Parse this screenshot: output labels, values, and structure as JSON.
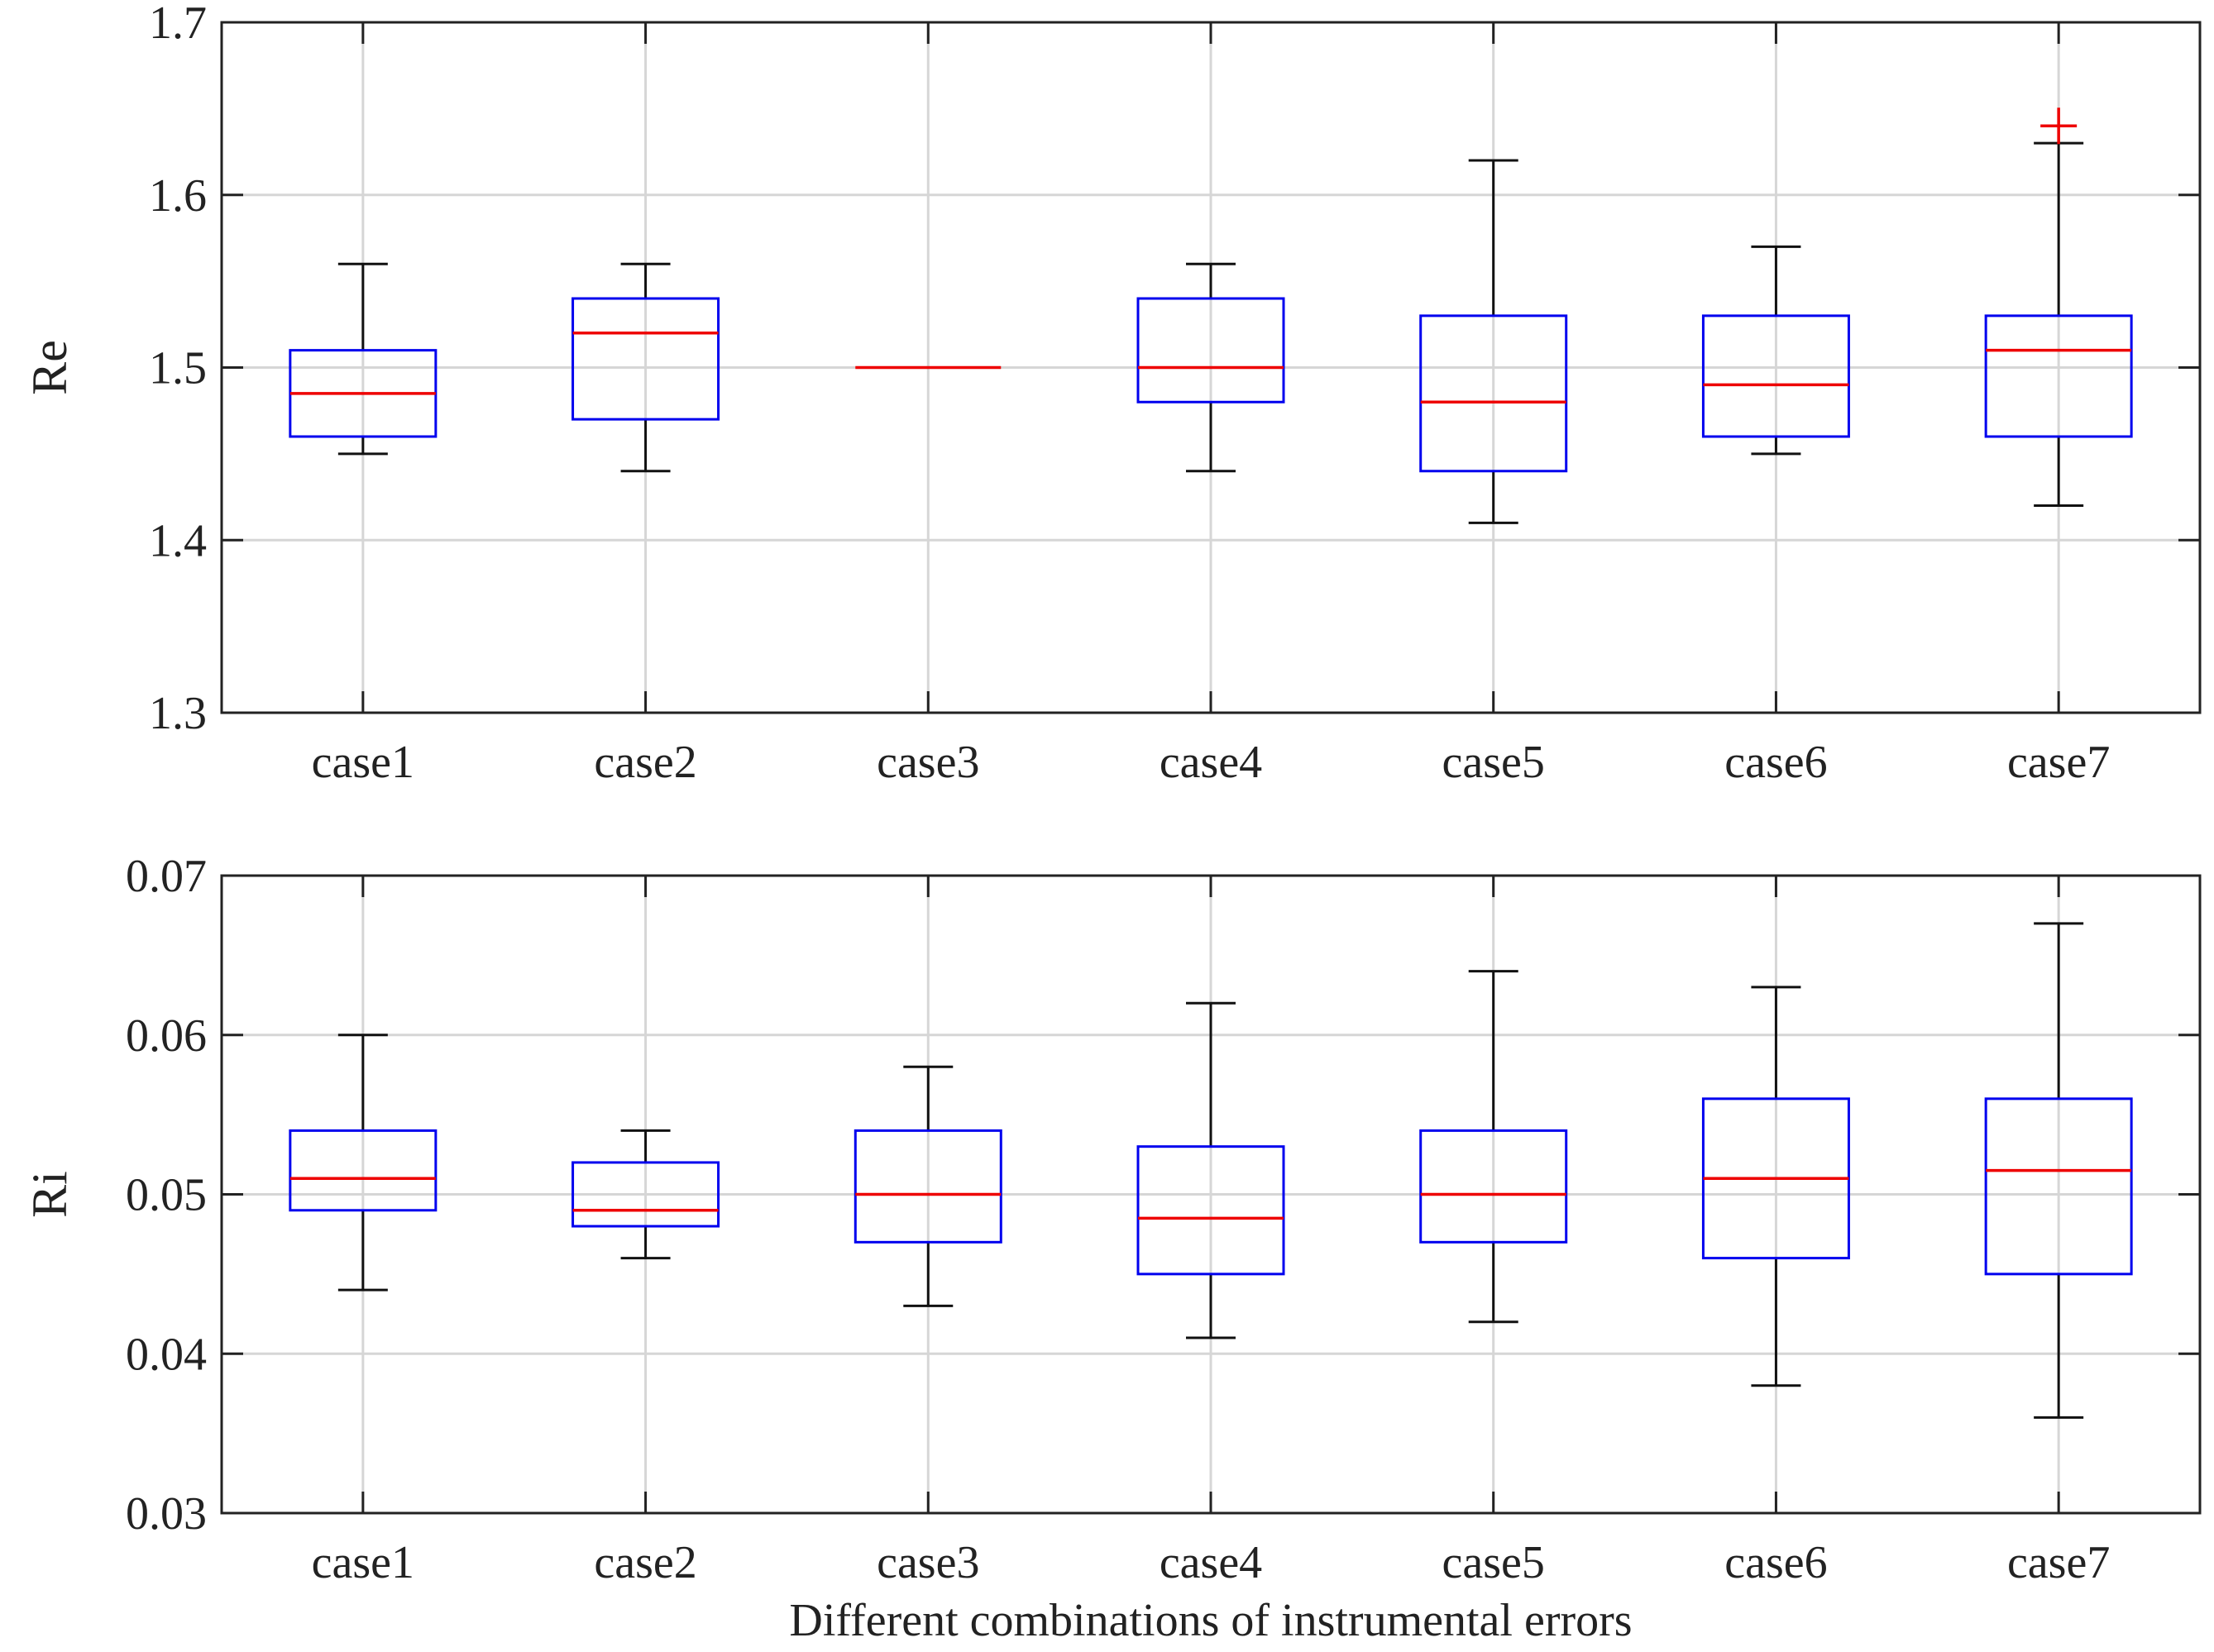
{
  "chart_data": [
    {
      "type": "box",
      "ylabel": "Re",
      "xlabel": "",
      "ylim": [
        1.3,
        1.7
      ],
      "yticks": [
        1.3,
        1.4,
        1.5,
        1.6,
        1.7
      ],
      "ytick_labels": [
        "1.3",
        "1.4",
        "1.5",
        "1.6",
        "1.7"
      ],
      "grid": true,
      "categories": [
        "case1",
        "case2",
        "case3",
        "case4",
        "case5",
        "case6",
        "case7"
      ],
      "boxes": [
        {
          "min": 1.45,
          "q1": 1.46,
          "median": 1.485,
          "q3": 1.51,
          "max": 1.56,
          "outliers": []
        },
        {
          "min": 1.44,
          "q1": 1.47,
          "median": 1.52,
          "q3": 1.54,
          "max": 1.56,
          "outliers": []
        },
        {
          "min": 1.5,
          "q1": 1.5,
          "median": 1.5,
          "q3": 1.5,
          "max": 1.5,
          "outliers": []
        },
        {
          "min": 1.44,
          "q1": 1.48,
          "median": 1.5,
          "q3": 1.54,
          "max": 1.56,
          "outliers": []
        },
        {
          "min": 1.41,
          "q1": 1.44,
          "median": 1.48,
          "q3": 1.53,
          "max": 1.62,
          "outliers": []
        },
        {
          "min": 1.45,
          "q1": 1.46,
          "median": 1.49,
          "q3": 1.53,
          "max": 1.57,
          "outliers": []
        },
        {
          "min": 1.42,
          "q1": 1.46,
          "median": 1.51,
          "q3": 1.53,
          "max": 1.63,
          "outliers": [
            1.64
          ]
        }
      ]
    },
    {
      "type": "box",
      "ylabel": "Ri",
      "xlabel": "Different combinations of instrumental errors",
      "ylim": [
        0.03,
        0.07
      ],
      "yticks": [
        0.03,
        0.04,
        0.05,
        0.06,
        0.07
      ],
      "ytick_labels": [
        "0.03",
        "0.04",
        "0.05",
        "0.06",
        "0.07"
      ],
      "grid": true,
      "categories": [
        "case1",
        "case2",
        "case3",
        "case4",
        "case5",
        "case6",
        "case7"
      ],
      "boxes": [
        {
          "min": 0.044,
          "q1": 0.049,
          "median": 0.051,
          "q3": 0.054,
          "max": 0.06,
          "outliers": []
        },
        {
          "min": 0.046,
          "q1": 0.048,
          "median": 0.049,
          "q3": 0.052,
          "max": 0.054,
          "outliers": []
        },
        {
          "min": 0.043,
          "q1": 0.047,
          "median": 0.05,
          "q3": 0.054,
          "max": 0.058,
          "outliers": []
        },
        {
          "min": 0.041,
          "q1": 0.045,
          "median": 0.0485,
          "q3": 0.053,
          "max": 0.062,
          "outliers": []
        },
        {
          "min": 0.042,
          "q1": 0.047,
          "median": 0.05,
          "q3": 0.054,
          "max": 0.064,
          "outliers": []
        },
        {
          "min": 0.038,
          "q1": 0.046,
          "median": 0.051,
          "q3": 0.056,
          "max": 0.063,
          "outliers": []
        },
        {
          "min": 0.036,
          "q1": 0.045,
          "median": 0.0515,
          "q3": 0.056,
          "max": 0.067,
          "outliers": []
        }
      ]
    }
  ],
  "colors": {
    "box": "#0000ee",
    "median": "#ee0000",
    "whisker": "#111111",
    "outlier": "#ee0000",
    "grid": "#d6d6d6",
    "axis": "#222222"
  }
}
